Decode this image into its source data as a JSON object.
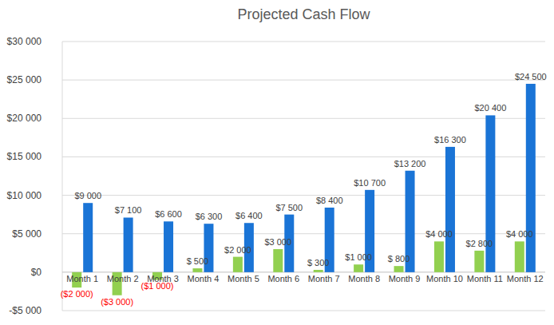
{
  "chart_data": {
    "type": "bar",
    "title": "Projected Cash Flow",
    "categories": [
      "Month 1",
      "Month 2",
      "Month 3",
      "Month 4",
      "Month 5",
      "Month 6",
      "Month 7",
      "Month 8",
      "Month 9",
      "Month 10",
      "Month 11",
      "Month 12"
    ],
    "series": [
      {
        "color": "#92d050",
        "values": [
          -2000,
          -3000,
          -1000,
          500,
          2000,
          3000,
          300,
          1000,
          800,
          4000,
          2800,
          4000
        ],
        "value_labels": [
          "($2 000)",
          "($3 000)",
          "($1 000)",
          "$ 500",
          "$2 000",
          "$3 000",
          "$ 300",
          "$1 000",
          "$ 800",
          "$4 000",
          "$2 800",
          "$4 000"
        ]
      },
      {
        "color": "#1a74d6",
        "values": [
          9000,
          7100,
          6600,
          6300,
          6400,
          7500,
          8400,
          10700,
          13200,
          16300,
          20400,
          24500
        ],
        "value_labels": [
          "$9 000",
          "$7 100",
          "$6 600",
          "$6 300",
          "$6 400",
          "$7 500",
          "$8 400",
          "$10 700",
          "$13 200",
          "$16 300",
          "$20 400",
          "$24 500"
        ]
      }
    ],
    "ylim": [
      -5000,
      30000
    ],
    "yticks": [
      {
        "value": -5000,
        "label": "-$5 000"
      },
      {
        "value": 0,
        "label": "$0"
      },
      {
        "value": 5000,
        "label": "$5 000"
      },
      {
        "value": 10000,
        "label": "$10 000"
      },
      {
        "value": 15000,
        "label": "$15 000"
      },
      {
        "value": 20000,
        "label": "$20 000"
      },
      {
        "value": 25000,
        "label": "$25 000"
      },
      {
        "value": 30000,
        "label": "$30 000"
      }
    ],
    "grid": true,
    "data_labels": true
  }
}
